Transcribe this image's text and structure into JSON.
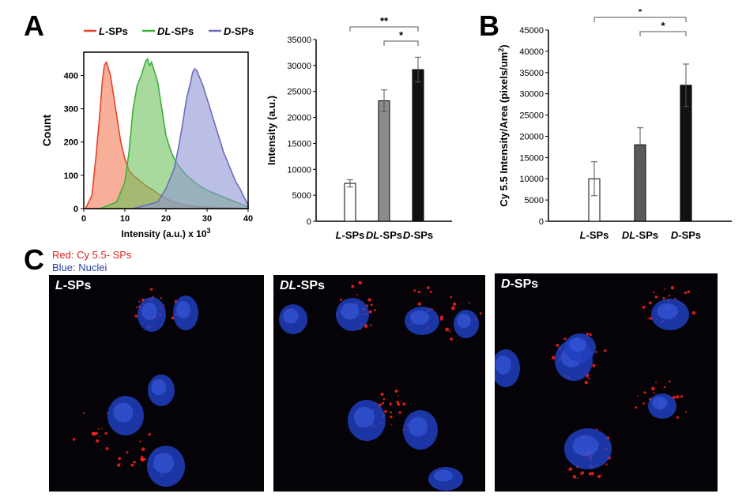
{
  "panels": {
    "a": "A",
    "b": "B",
    "c": "C"
  },
  "chart_data": [
    {
      "type": "area",
      "id": "histogram",
      "xlabel": "Intensity (a.u.) x 10",
      "xlabel_superscript": "3",
      "ylabel": "Count",
      "xlim": [
        0,
        40
      ],
      "ylim": [
        0,
        470
      ],
      "xticks": [
        0,
        10,
        20,
        30,
        40
      ],
      "yticks": [
        0,
        100,
        200,
        300,
        400
      ],
      "legend_position": "top",
      "series": [
        {
          "name": "L-SPs",
          "name_italic": "L",
          "name_rest": "-SPs",
          "color": "#e8432d",
          "fill": "#f47a56",
          "x": [
            0.5,
            2,
            3,
            4,
            4.5,
            5,
            5.5,
            6,
            6.5,
            7,
            8,
            9,
            10,
            11,
            12,
            13,
            14,
            15,
            16,
            17,
            18,
            19,
            20,
            22,
            24,
            26,
            28,
            30,
            32,
            35,
            38,
            40
          ],
          "y": [
            2,
            40,
            160,
            300,
            380,
            430,
            440,
            420,
            400,
            360,
            280,
            200,
            150,
            115,
            100,
            90,
            80,
            70,
            62,
            55,
            45,
            38,
            30,
            20,
            12,
            8,
            5,
            4,
            3,
            2,
            1,
            0
          ]
        },
        {
          "name": "DL-SPs",
          "name_italic": "DL",
          "name_rest": "-SPs",
          "color": "#3fae3b",
          "fill": "#6cc25a",
          "x": [
            4,
            8,
            10,
            11,
            12,
            13,
            14,
            15,
            15.5,
            16,
            16.5,
            17,
            18,
            19,
            20,
            21,
            22,
            23,
            24,
            25,
            26,
            28,
            30,
            32,
            34,
            36,
            38,
            40
          ],
          "y": [
            0,
            20,
            80,
            170,
            300,
            370,
            400,
            440,
            450,
            430,
            440,
            420,
            380,
            300,
            220,
            180,
            150,
            130,
            115,
            100,
            90,
            70,
            55,
            45,
            35,
            25,
            15,
            5
          ]
        },
        {
          "name": "D-SPs",
          "name_italic": "D",
          "name_rest": "-SPs",
          "color": "#6e6bb8",
          "fill": "#8f95d4",
          "x": [
            12,
            18,
            20,
            22,
            23,
            24,
            25,
            26,
            26.5,
            27,
            27.5,
            28,
            29,
            30,
            31,
            32,
            33,
            34,
            35,
            36,
            37,
            38,
            39,
            40
          ],
          "y": [
            0,
            20,
            60,
            120,
            180,
            250,
            330,
            380,
            410,
            420,
            415,
            400,
            370,
            330,
            290,
            250,
            210,
            170,
            140,
            110,
            80,
            60,
            35,
            10
          ]
        }
      ]
    },
    {
      "type": "bar",
      "id": "flow-bar",
      "categories_italic": [
        "L",
        "DL",
        "D"
      ],
      "categories_rest": [
        "-SPs",
        "-SPs",
        "-SPs"
      ],
      "values": [
        7300,
        23200,
        29200
      ],
      "errors": [
        700,
        2100,
        2400
      ],
      "colors": [
        "#ffffff",
        "#8c8c8c",
        "#111111"
      ],
      "ylabel": "Intensity (a.u.)",
      "ylim": [
        0,
        35000
      ],
      "yticks": [
        0,
        5000,
        10000,
        15000,
        20000,
        25000,
        30000,
        35000
      ],
      "significance": [
        {
          "from": 0,
          "to": 2,
          "label": "**"
        },
        {
          "from": 1,
          "to": 2,
          "label": "*"
        }
      ]
    },
    {
      "type": "bar",
      "id": "imaging-bar",
      "categories_italic": [
        "L",
        "DL",
        "D"
      ],
      "categories_rest": [
        "-SPs",
        "-SPs",
        "-SPs"
      ],
      "values": [
        10000,
        18000,
        32000
      ],
      "errors": [
        4000,
        4000,
        5000
      ],
      "colors": [
        "#ffffff",
        "#5a5a5a",
        "#111111"
      ],
      "ylabel": "Cy 5.5 Intensity/Area (pixels/um",
      "ylabel_superscript": "2",
      "ylabel_close": ")",
      "ylim": [
        0,
        45000
      ],
      "yticks": [
        0,
        5000,
        10000,
        15000,
        20000,
        25000,
        30000,
        35000,
        40000,
        45000
      ],
      "significance": [
        {
          "from": 0,
          "to": 2,
          "label": "*"
        },
        {
          "from": 1,
          "to": 2,
          "label": "*"
        }
      ]
    }
  ],
  "micrographs": {
    "legend_red": "Red: Cy 5.5- SPs",
    "legend_blue": "Blue: Nuclei",
    "red_color": "#ff2020",
    "blue_color": "#2040c0",
    "images": [
      {
        "label_italic": "L",
        "label_rest": "-SPs"
      },
      {
        "label_italic": "DL",
        "label_rest": "-SPs"
      },
      {
        "label_italic": "D",
        "label_rest": "-SPs"
      }
    ]
  }
}
